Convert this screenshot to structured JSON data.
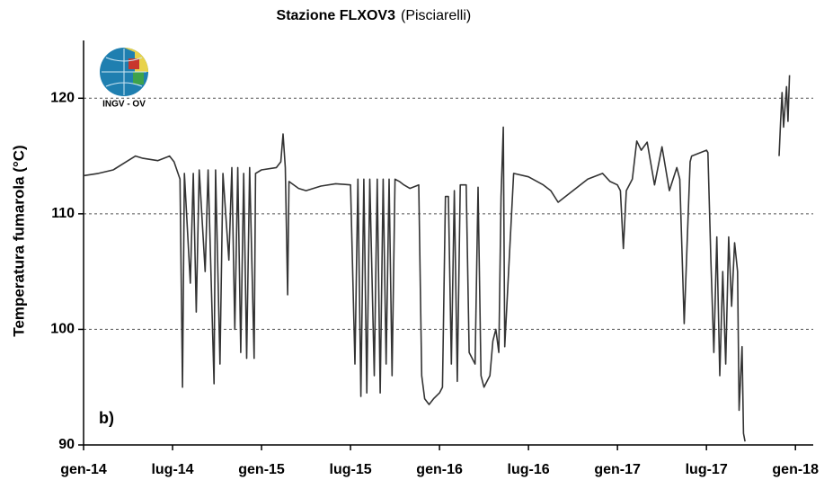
{
  "chart_data": {
    "type": "line",
    "title": "Stazione FLXOV3",
    "subtitle": "(Pisciarelli)",
    "y_label": "Temperatura fumarola  (°C)",
    "annotation": "b)",
    "logo_label": "INGV - OV",
    "xlim": [
      0,
      49.2
    ],
    "xticks": [
      {
        "value": 0,
        "label": "gen-14"
      },
      {
        "value": 6,
        "label": "lug-14"
      },
      {
        "value": 12,
        "label": "gen-15"
      },
      {
        "value": 18,
        "label": "lug-15"
      },
      {
        "value": 24,
        "label": "gen-16"
      },
      {
        "value": 30,
        "label": "lug-16"
      },
      {
        "value": 36,
        "label": "gen-17"
      },
      {
        "value": 42,
        "label": "lug-17"
      },
      {
        "value": 48,
        "label": "gen-18"
      }
    ],
    "ylim": [
      90,
      125
    ],
    "yticks": [
      90,
      100,
      110,
      120
    ],
    "grid": true,
    "series": [
      {
        "name": "FLXOV3",
        "color": "#333333",
        "x": [
          0,
          1,
          2,
          3,
          3.5,
          4,
          5,
          5.8,
          6.1,
          6.5,
          6.67,
          6.8,
          7.2,
          7.4,
          7.6,
          7.8,
          8.2,
          8.4,
          8.8,
          8.9,
          9.2,
          9.4,
          9.8,
          10.0,
          10.2,
          10.4,
          10.6,
          10.8,
          11.0,
          11.2,
          11.5,
          11.6,
          12,
          13,
          13.3,
          13.45,
          13.6,
          13.76,
          13.85,
          14.5,
          15,
          16,
          17,
          18,
          18.3,
          18.5,
          18.7,
          18.9,
          19.1,
          19.3,
          19.6,
          19.8,
          20.0,
          20.2,
          20.4,
          20.6,
          20.8,
          21.0,
          21.3,
          21.6,
          22.0,
          22.6,
          22.8,
          23,
          23.3,
          23.6,
          24,
          24.2,
          24.4,
          24.6,
          24.8,
          25.0,
          25.2,
          25.4,
          25.8,
          26.0,
          26.4,
          26.6,
          26.8,
          27.0,
          27.4,
          27.6,
          27.8,
          28.0,
          28.15,
          28.3,
          28.4,
          29,
          30,
          31,
          31.5,
          32,
          33,
          34,
          35,
          35.5,
          36,
          36.2,
          36.4,
          36.6,
          37,
          37.3,
          37.6,
          38,
          38.5,
          39,
          39.5,
          40,
          40.2,
          40.5,
          40.9,
          41,
          42,
          42.1,
          42.3,
          42.5,
          42.7,
          42.9,
          43.1,
          43.3,
          43.5,
          43.7,
          43.9,
          44.1,
          44.2,
          44.4,
          44.5,
          44.6,
          45.5,
          46.9,
          47.0,
          47.1,
          47.2,
          47.4,
          47.5,
          47.6
        ],
        "values": [
          113.3,
          113.5,
          113.8,
          114.6,
          115,
          114.8,
          114.6,
          115,
          114.5,
          113,
          95,
          113.5,
          104,
          113.5,
          101.5,
          113.8,
          105,
          113.8,
          95.3,
          113.8,
          97,
          113.5,
          106,
          114,
          100,
          114,
          98,
          113.5,
          97.5,
          114,
          97.5,
          113.5,
          113.8,
          114,
          114.5,
          116.9,
          114,
          103,
          112.8,
          112.2,
          112,
          112.4,
          112.6,
          112.5,
          97,
          113,
          94.2,
          113,
          94.5,
          113,
          96,
          113,
          94.5,
          113,
          97,
          113,
          96,
          113,
          112.8,
          112.5,
          112.2,
          112.5,
          96,
          94,
          93.5,
          94,
          94.5,
          95,
          111.5,
          111.5,
          97,
          112,
          95.5,
          112.5,
          112.5,
          98,
          97,
          112.3,
          96,
          95,
          96,
          99,
          100,
          98,
          111.5,
          117.5,
          98.5,
          113.5,
          113.2,
          112.5,
          112,
          111,
          112,
          113,
          113.5,
          112.8,
          112.5,
          112,
          107,
          112,
          113,
          116.3,
          115.5,
          116.2,
          112.5,
          115.8,
          112,
          114,
          113,
          100.5,
          114.5,
          115,
          115.5,
          115.3,
          106,
          98,
          108,
          96,
          105,
          97,
          108,
          102,
          107.5,
          105,
          93,
          98.5,
          91,
          90.3,
          null,
          115,
          118,
          120.5,
          117.5,
          121,
          118,
          122
        ]
      }
    ]
  }
}
